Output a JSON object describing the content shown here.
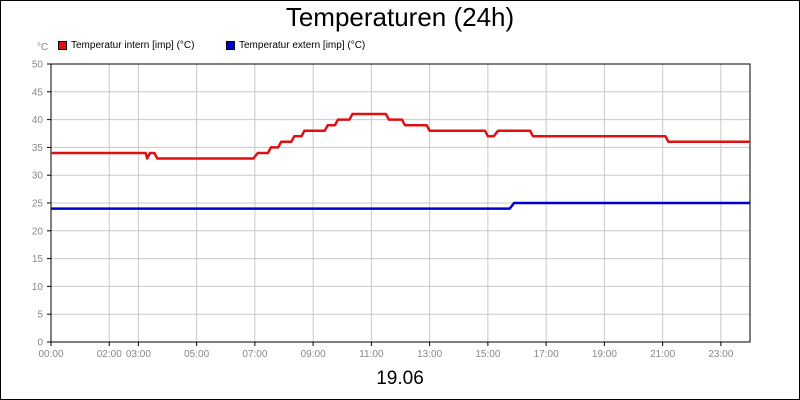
{
  "chart_data": {
    "type": "line",
    "title": "Temperaturen (24h)",
    "ylabel": "°C",
    "xlabel": "19.06",
    "ylim": [
      0,
      50
    ],
    "yticks": [
      "0",
      "5",
      "10",
      "15",
      "20",
      "25",
      "30",
      "35",
      "40",
      "45",
      "50"
    ],
    "xlim": [
      0,
      24
    ],
    "xticks": [
      {
        "t": 0,
        "label": "00:00"
      },
      {
        "t": 2,
        "label": "02:00"
      },
      {
        "t": 3,
        "label": "03:00"
      },
      {
        "t": 5,
        "label": "05:00"
      },
      {
        "t": 7,
        "label": "07:00"
      },
      {
        "t": 9,
        "label": "09:00"
      },
      {
        "t": 11,
        "label": "11:00"
      },
      {
        "t": 13,
        "label": "13:00"
      },
      {
        "t": 15,
        "label": "15:00"
      },
      {
        "t": 17,
        "label": "17:00"
      },
      {
        "t": 19,
        "label": "19:00"
      },
      {
        "t": 21,
        "label": "21:00"
      },
      {
        "t": 23,
        "label": "23:00"
      }
    ],
    "grid": true,
    "legend_position": "top-left",
    "series": [
      {
        "name": "Temperatur intern [imp] (°C)",
        "color": "#e01010",
        "points": [
          [
            0,
            34
          ],
          [
            3.25,
            34
          ],
          [
            3.3,
            33
          ],
          [
            3.4,
            34
          ],
          [
            3.55,
            34
          ],
          [
            3.65,
            33
          ],
          [
            6.95,
            33
          ],
          [
            7.1,
            34
          ],
          [
            7.45,
            34
          ],
          [
            7.55,
            35
          ],
          [
            7.8,
            35
          ],
          [
            7.9,
            36
          ],
          [
            8.25,
            36
          ],
          [
            8.35,
            37
          ],
          [
            8.6,
            37
          ],
          [
            8.7,
            38
          ],
          [
            9.4,
            38
          ],
          [
            9.5,
            39
          ],
          [
            9.75,
            39
          ],
          [
            9.85,
            40
          ],
          [
            10.25,
            40
          ],
          [
            10.35,
            41
          ],
          [
            11.5,
            41
          ],
          [
            11.6,
            40
          ],
          [
            12.05,
            40
          ],
          [
            12.15,
            39
          ],
          [
            12.9,
            39
          ],
          [
            13.0,
            38
          ],
          [
            14.9,
            38
          ],
          [
            15.0,
            37
          ],
          [
            15.2,
            37
          ],
          [
            15.35,
            38
          ],
          [
            16.45,
            38
          ],
          [
            16.55,
            37
          ],
          [
            21.1,
            37
          ],
          [
            21.2,
            36
          ],
          [
            24,
            36
          ]
        ]
      },
      {
        "name": "Temperatur extern [imp] (°C)",
        "color": "#0000cc",
        "points": [
          [
            0,
            24
          ],
          [
            15.75,
            24
          ],
          [
            15.9,
            25
          ],
          [
            24,
            25
          ]
        ]
      }
    ]
  }
}
